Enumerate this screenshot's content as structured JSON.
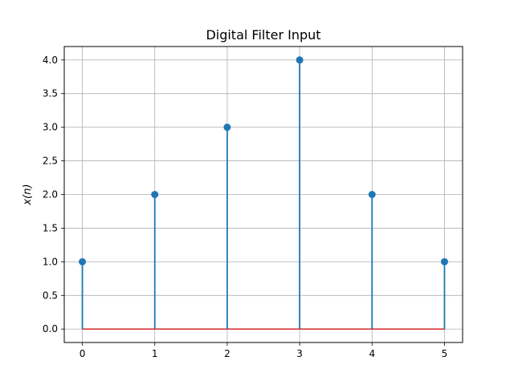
{
  "chart_data": {
    "type": "stem",
    "title": "Digital Filter Input",
    "xlabel": "",
    "ylabel": "x(n)",
    "x": [
      0,
      1,
      2,
      3,
      4,
      5
    ],
    "values": [
      1,
      2,
      3,
      4,
      2,
      1
    ],
    "xticks": [
      "0",
      "1",
      "2",
      "3",
      "4",
      "5"
    ],
    "yticks": [
      "0.0",
      "0.5",
      "1.0",
      "1.5",
      "2.0",
      "2.5",
      "3.0",
      "3.5",
      "4.0"
    ],
    "xlim": [
      -0.25,
      5.25
    ],
    "ylim": [
      -0.2,
      4.2
    ],
    "grid": true,
    "colors": {
      "stem": "#1f77b4",
      "baseline": "#d62728",
      "grid": "#b0b0b0"
    }
  }
}
